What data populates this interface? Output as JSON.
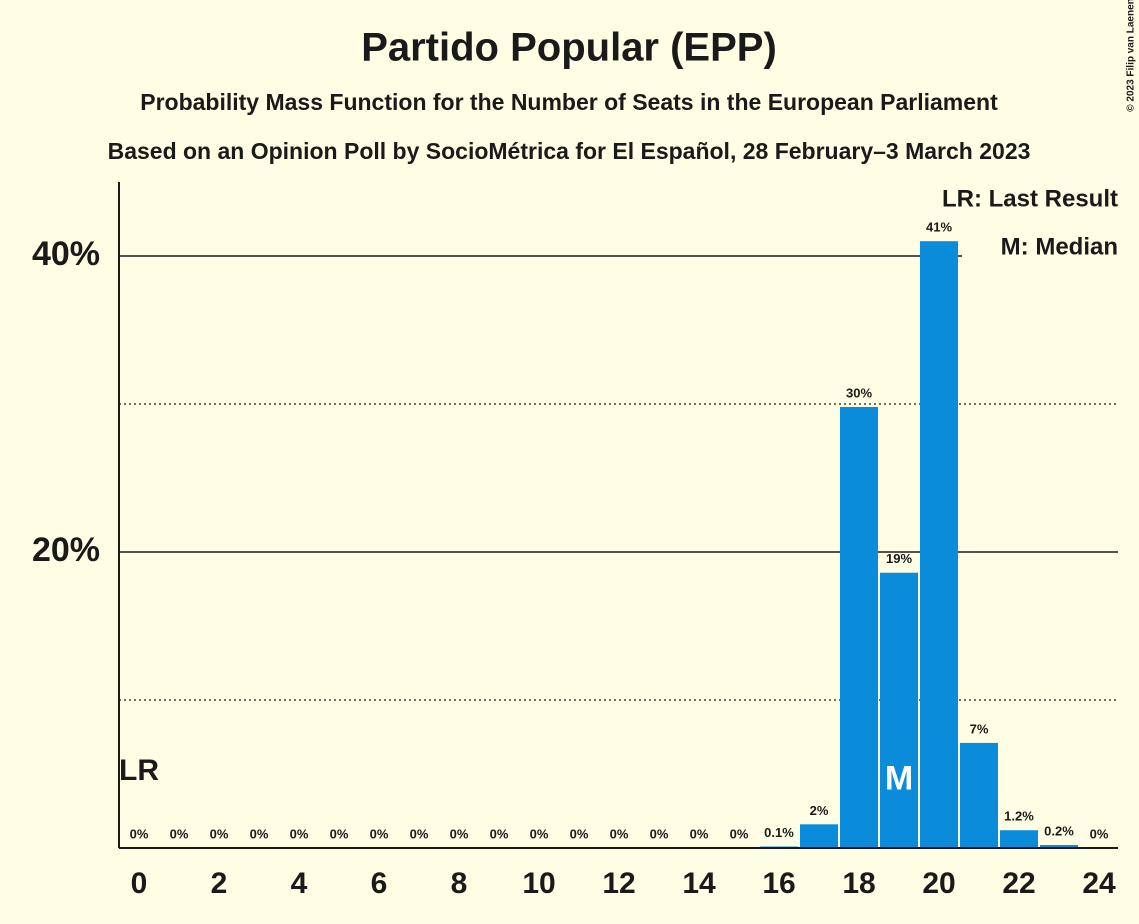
{
  "chart_data": {
    "type": "bar",
    "title": "Partido Popular (EPP)",
    "subtitle": "Probability Mass Function for the Number of Seats in the European Parliament",
    "subtitle2": "Based on an Opinion Poll by SocioMétrica for El Español, 28 February–3 March 2023",
    "copyright": "© 2023 Filip van Laenen",
    "categories": [
      0,
      null,
      2,
      null,
      4,
      null,
      6,
      null,
      8,
      null,
      10,
      null,
      12,
      null,
      14,
      null,
      16,
      null,
      18,
      null,
      20,
      null,
      22,
      null,
      24
    ],
    "values": [
      0,
      0,
      0,
      0,
      0,
      0,
      0,
      0,
      0,
      0,
      0,
      0,
      0,
      0,
      0,
      0,
      0.1,
      1.6,
      29.8,
      18.6,
      41.0,
      7.1,
      1.2,
      0.2,
      0
    ],
    "value_labels": [
      "0%",
      "0%",
      "0%",
      "0%",
      "0%",
      "0%",
      "0%",
      "0%",
      "0%",
      "0%",
      "0%",
      "0%",
      "0%",
      "0%",
      "0%",
      "0%",
      "0.1%",
      "2%",
      "30%",
      "19%",
      "41%",
      "7%",
      "1.2%",
      "0.2%",
      "0%"
    ],
    "color": "#0b8cdb",
    "ylim": [
      0,
      45
    ],
    "yticks": [
      {
        "value": 20,
        "label": "20%"
      },
      {
        "value": 40,
        "label": "40%"
      }
    ],
    "minor_gridlines": [
      10,
      30
    ],
    "markers": [
      {
        "label": "LR",
        "category": 0
      },
      {
        "label": "M",
        "category": 19
      }
    ],
    "legend": [
      "LR: Last Result",
      "M: Median"
    ]
  }
}
